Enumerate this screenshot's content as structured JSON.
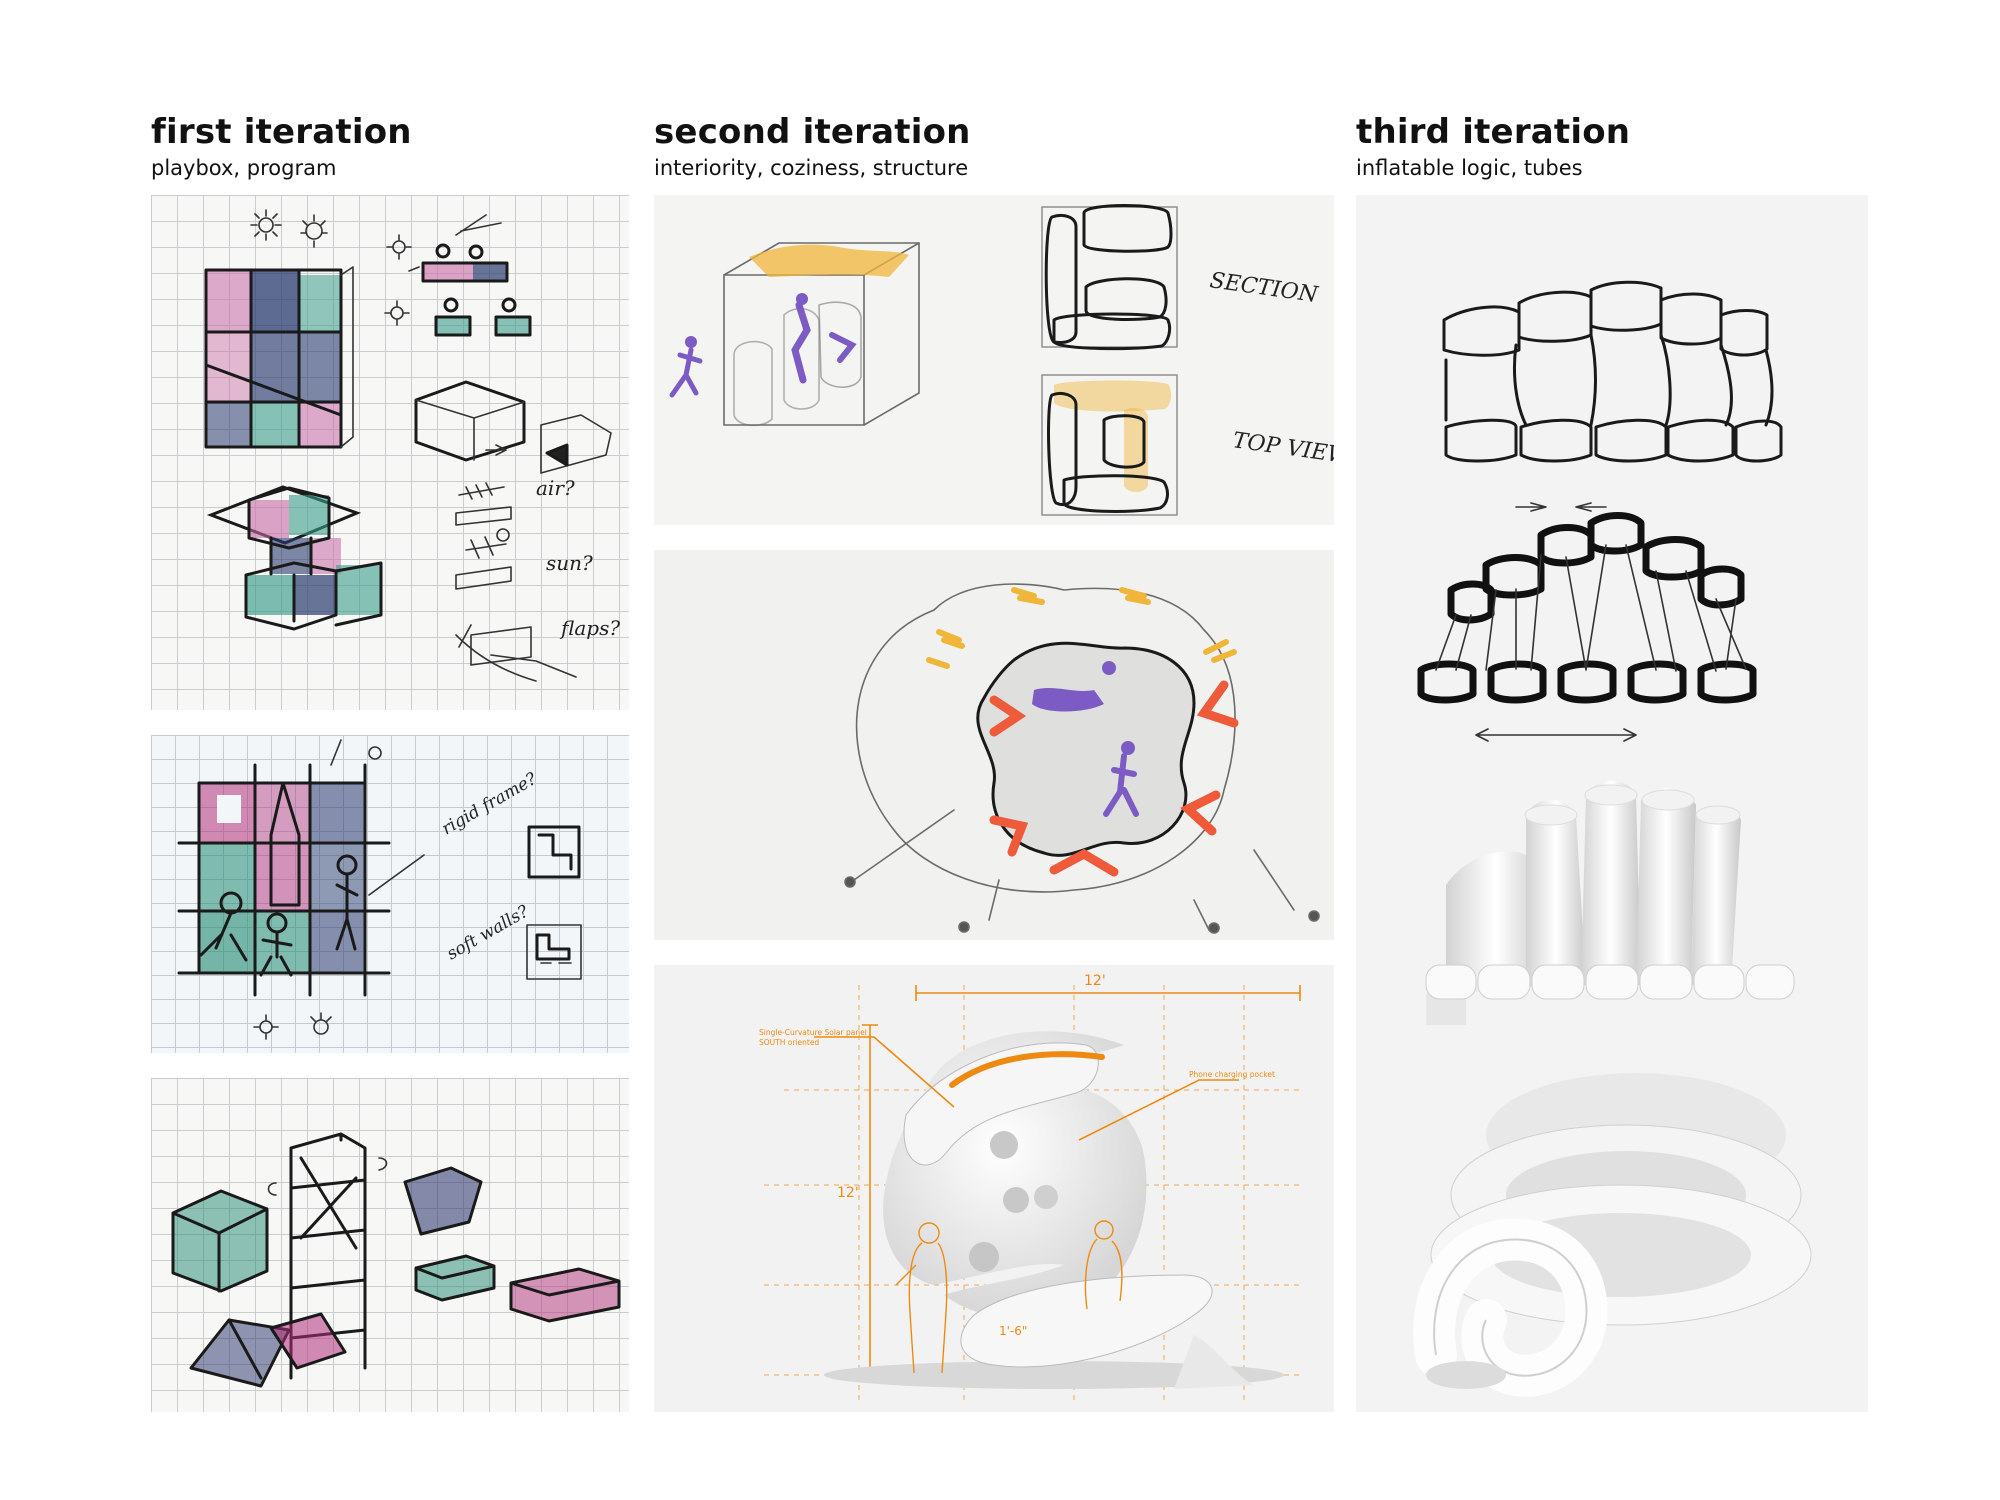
{
  "columns": [
    {
      "title": "first iteration",
      "subtitle": "playbox, program"
    },
    {
      "title": "second iteration",
      "subtitle": "interiority, coziness, structure"
    },
    {
      "title": "third iteration",
      "subtitle": "inflatable logic, tubes"
    }
  ],
  "sketch_notes": {
    "air": "air?",
    "sun": "sun?",
    "flaps": "flaps?",
    "rigid_frame": "rigid frame?",
    "soft_walls": "soft walls?",
    "section": "SECTION",
    "top_view": "TOP VIEW"
  },
  "dimensions": {
    "width": "12'",
    "height": "12'",
    "seat": "1'-6\""
  },
  "annotations": {
    "solar_panel_line1": "Single-Curvature Solar panel",
    "solar_panel_line2": "SOUTH oriented",
    "phone_pocket": "Phone charging pocket"
  },
  "colors": {
    "magenta": "#b0307a",
    "teal": "#1f8a72",
    "navy": "#26306a",
    "yellow": "#f0b63a",
    "purple": "#7c5bc4",
    "red_orange": "#ee5a3a",
    "dim_orange": "#ee8a12"
  }
}
